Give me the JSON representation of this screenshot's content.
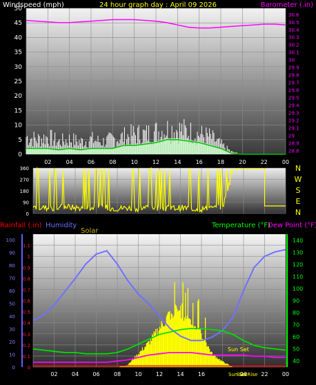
{
  "header": {
    "title": "24 hour graph day : April 09 2026",
    "windspeed_label": "Windspeed (mph)",
    "barometer_label": "Barometer (.in)"
  },
  "colors": {
    "background": "#000000",
    "windspeed": "#ffffff",
    "windgust_fill": "#c8ffc8",
    "windavg": "#00c000",
    "barometer": "#ff00ff",
    "title": "#ffff00",
    "direction": "#ffff00",
    "rainfall": "#ff0000",
    "humidity": "#7070ff",
    "solar": "#ffff00",
    "temperature": "#00e000",
    "dewpoint": "#ff00ff",
    "right_axis": "#00ff00"
  },
  "x_tick_labels": [
    "02",
    "04",
    "06",
    "08",
    "10",
    "12",
    "14",
    "16",
    "18",
    "20",
    "22",
    "00"
  ],
  "chart_data": [
    {
      "type": "line",
      "title": "24 hour graph day : April 09 2026",
      "xlabel": "",
      "ylabel": "Windspeed (mph)",
      "ylabel_right": "Barometer (.in)",
      "ylim": [
        0,
        50
      ],
      "ylim_right": [
        28.75,
        30.68
      ],
      "grid": true,
      "y_ticks": [
        "0",
        "5",
        "10",
        "15",
        "20",
        "25",
        "30",
        "35",
        "40",
        "45",
        "50"
      ],
      "y_ticks_right": [
        "28.8",
        "28.9",
        "29",
        "29.1",
        "29.2",
        "29.3",
        "29.4",
        "29.5",
        "29.6",
        "29.7",
        "29.8",
        "29.9",
        "30",
        "30.1",
        "30.2",
        "30.3",
        "30.4",
        "30.5",
        "30.6"
      ],
      "x": [
        0,
        1,
        2,
        3,
        4,
        5,
        6,
        7,
        8,
        9,
        10,
        11,
        12,
        13,
        14,
        15,
        16,
        17,
        18,
        19,
        20,
        21,
        22,
        23,
        24
      ],
      "series": [
        {
          "axis": "right",
          "values": [
            30.52,
            30.51,
            30.5,
            30.49,
            30.49,
            30.5,
            30.51,
            30.52,
            30.53,
            30.53,
            30.53,
            30.52,
            30.51,
            30.49,
            30.46,
            30.43,
            30.42,
            30.42,
            30.43,
            30.44,
            30.45,
            30.46,
            30.47,
            30.47,
            30.46
          ]
        },
        {
          "axis": "left",
          "values": [
            7,
            6,
            7,
            5,
            6,
            5,
            6,
            5,
            6,
            7,
            8,
            8,
            9,
            10,
            10,
            9,
            8,
            7,
            4,
            1,
            0,
            0,
            0,
            0,
            0
          ]
        },
        {
          "axis": "left",
          "values": [
            2,
            2,
            2,
            1.5,
            2,
            1.5,
            2,
            2,
            2,
            3,
            3,
            3.5,
            4,
            5,
            5,
            4.5,
            4,
            3,
            2,
            0.3,
            0,
            0,
            0,
            0,
            0
          ]
        }
      ]
    },
    {
      "type": "line",
      "title": "",
      "xlabel": "",
      "ylabel": "",
      "ylim": [
        0,
        360
      ],
      "grid": true,
      "y_ticks": [
        "0",
        "90",
        "180",
        "270",
        "360"
      ],
      "compass_labels": [
        "N",
        "W",
        "S",
        "E",
        "N"
      ],
      "x": [
        0,
        1,
        2,
        3,
        4,
        5,
        6,
        7,
        8,
        9,
        10,
        11,
        12,
        13,
        14,
        15,
        16,
        17,
        18,
        19,
        20,
        21,
        22,
        23,
        24
      ],
      "series": [
        {
          "values": [
            50,
            45,
            40,
            55,
            45,
            40,
            50,
            45,
            40,
            45,
            40,
            50,
            45,
            40,
            45,
            40,
            35,
            40,
            45,
            350,
            350,
            350,
            60,
            60,
            60
          ]
        }
      ]
    },
    {
      "type": "line",
      "title": "",
      "xlabel": "",
      "ylabel": "Rainfall (.in)",
      "ylabel_2": "Humidity",
      "ylabel_3": "Solar",
      "ylabel_right": "Temperature (°F)",
      "ylabel_right_2": "Dew Point (°F)",
      "ylim": [
        0,
        1.2
      ],
      "ylim_right": [
        35,
        145
      ],
      "grid": true,
      "y_ticks": [
        "0",
        "0.1",
        "0.2",
        "0.3",
        "0.4",
        "0.5",
        "0.6",
        "0.7",
        "0.8",
        "0.9",
        "1",
        "1.1"
      ],
      "y_ticks_2": [
        "0",
        "10",
        "20",
        "30",
        "40",
        "50",
        "60",
        "70",
        "80",
        "90",
        "100"
      ],
      "y_ticks_right": [
        "40",
        "50",
        "60",
        "70",
        "80",
        "90",
        "100",
        "110",
        "120",
        "130",
        "140"
      ],
      "x": [
        0,
        1,
        2,
        3,
        4,
        5,
        6,
        7,
        8,
        9,
        10,
        11,
        12,
        13,
        14,
        15,
        16,
        17,
        18,
        19,
        20,
        21,
        22,
        23,
        24
      ],
      "annotations": [
        "Sun Set",
        "Sun Set",
        "Sun Rise"
      ],
      "series": [
        {
          "axis": "humidity",
          "values": [
            0.42,
            0.47,
            0.56,
            0.68,
            0.8,
            0.93,
            1.02,
            1.05,
            0.93,
            0.78,
            0.66,
            0.57,
            0.46,
            0.35,
            0.28,
            0.24,
            0.24,
            0.27,
            0.33,
            0.45,
            0.69,
            0.9,
            1.0,
            1.04,
            1.06
          ]
        },
        {
          "axis": "right",
          "values": [
            50,
            49,
            48,
            47,
            47,
            46,
            46,
            46,
            47,
            50,
            54,
            58,
            62,
            64,
            66,
            67,
            67,
            66,
            65,
            62,
            57,
            53,
            51,
            50,
            49
          ]
        },
        {
          "axis": "right",
          "values": [
            39,
            39,
            39,
            39,
            39,
            39,
            39,
            39,
            40,
            41,
            43,
            45,
            46,
            47,
            47,
            47,
            46,
            45,
            45,
            45,
            45,
            44,
            44,
            43,
            43
          ]
        },
        {
          "axis": "left",
          "values": [
            0,
            0,
            0,
            0,
            0,
            0,
            0,
            0,
            0,
            0.02,
            0.12,
            0.22,
            0.35,
            0.48,
            0.52,
            0.42,
            0.3,
            0.12,
            0.05,
            0,
            0,
            0,
            0,
            0,
            0
          ]
        },
        {
          "axis": "left",
          "values": [
            0,
            0,
            0,
            0,
            0,
            0,
            0,
            0,
            0,
            0,
            0,
            0,
            0,
            0,
            0,
            0,
            0,
            0,
            0,
            0,
            0,
            0,
            0,
            0,
            0
          ]
        }
      ]
    }
  ]
}
